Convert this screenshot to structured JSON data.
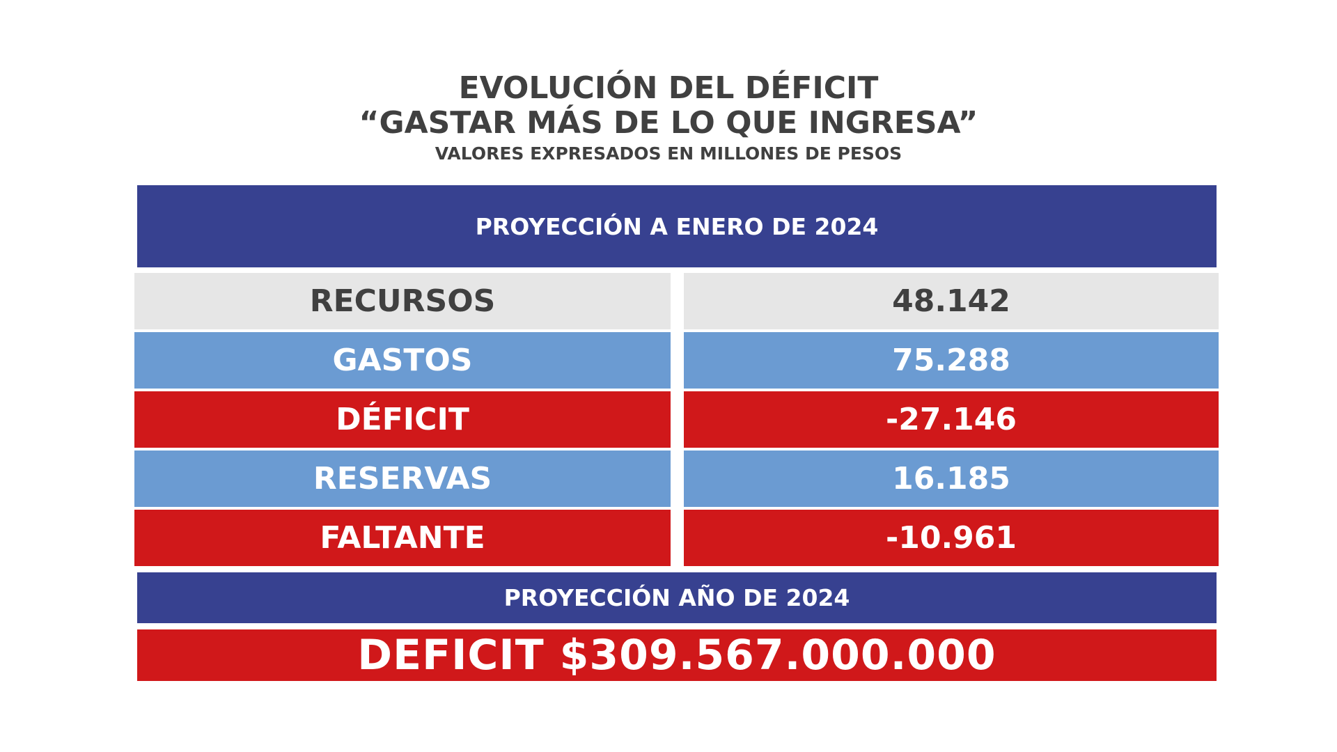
{
  "title": {
    "line1": "EVOLUCIÓN DEL DÉFICIT",
    "line2": "“GASTAR MÁS DE LO QUE INGRESA”",
    "subtitle": "VALORES EXPRESADOS EN MILLONES DE PESOS"
  },
  "header_band": "PROYECCIÓN A ENERO DE 2024",
  "colors": {
    "navy": "#374190",
    "gray": "#e6e6e6",
    "blue": "#6b9bd2",
    "red": "#d0181a",
    "text_dark": "#404040",
    "text_light": "#ffffff"
  },
  "chart_data": {
    "type": "table",
    "rows": [
      {
        "label": "RECURSOS",
        "value": "48.142",
        "style": "gray"
      },
      {
        "label": "GASTOS",
        "value": "75.288",
        "style": "blue"
      },
      {
        "label": "DÉFICIT",
        "value": "-27.146",
        "style": "red"
      },
      {
        "label": "RESERVAS",
        "value": "16.185",
        "style": "blue"
      },
      {
        "label": "FALTANTE",
        "value": "-10.961",
        "style": "red"
      }
    ]
  },
  "year_band": "PROYECCIÓN AÑO DE 2024",
  "total_band": "DEFICIT $309.567.000.000"
}
